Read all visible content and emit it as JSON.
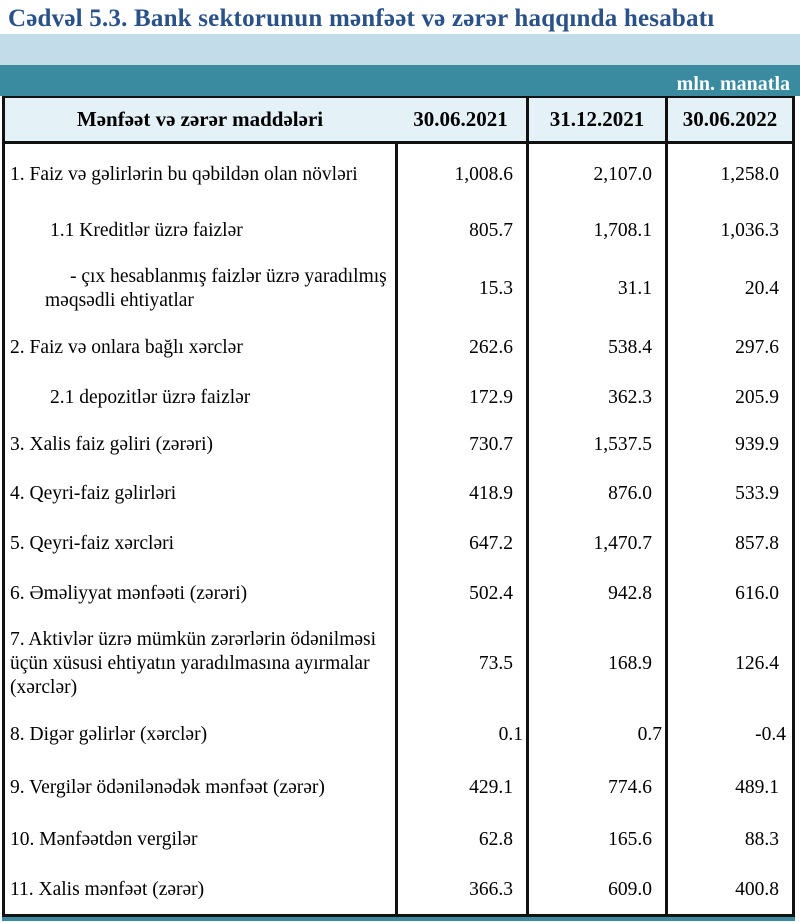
{
  "title": "Cədvəl 5.3. Bank sektorunun mənfəət və zərər haqqında hesabatı",
  "unit_label": "mln. manatla",
  "colors": {
    "accent_teal": "#3a8aa0",
    "band_light_blue": "#c2dde9",
    "header_bg": "#e4f1f7",
    "title_blue": "#2a5288"
  },
  "table": {
    "header": {
      "items_label": "Mənfəət və zərər maddələri",
      "columns": [
        "30.06.2021",
        "31.12.2021",
        "30.06.2022"
      ]
    },
    "rows": [
      {
        "label": "1. Faiz və gəlirlərin bu qəbildən olan növləri",
        "values": [
          "1,008.6",
          "2,107.0",
          "1,258.0"
        ]
      },
      {
        "label": "1.1 Kreditlər üzrə faizlər",
        "values": [
          "805.7",
          "1,708.1",
          "1,036.3"
        ]
      },
      {
        "label": "-  çıx hesablanmış faizlər üzrə yaradılmış məqsədli ehtiyatlar",
        "values": [
          "15.3",
          "31.1",
          "20.4"
        ]
      },
      {
        "label": "2. Faiz və onlara bağlı xərclər",
        "values": [
          "262.6",
          "538.4",
          "297.6"
        ]
      },
      {
        "label": "2.1 depozitlər üzrə faizlər",
        "values": [
          "172.9",
          "362.3",
          "205.9"
        ]
      },
      {
        "label": "3. Xalis faiz gəliri (zərəri)",
        "values": [
          "730.7",
          "1,537.5",
          "939.9"
        ]
      },
      {
        "label": "4. Qeyri-faiz gəlirləri",
        "values": [
          "418.9",
          "876.0",
          "533.9"
        ]
      },
      {
        "label": "5. Qeyri-faiz xərcləri",
        "values": [
          "647.2",
          "1,470.7",
          "857.8"
        ]
      },
      {
        "label": "6. Əməliyyat mənfəəti (zərəri)",
        "values": [
          "502.4",
          "942.8",
          "616.0"
        ]
      },
      {
        "label": "7. Aktivlər üzrə mümkün zərərlərin ödənilməsi üçün xüsusi ehtiyatın yaradılmasına ayırmalar (xərclər)",
        "values": [
          "73.5",
          "168.9",
          "126.4"
        ]
      },
      {
        "label": "8. Digər gəlirlər (xərclər)",
        "values": [
          "0.1",
          "0.7",
          "-0.4"
        ]
      },
      {
        "label": "9. Vergilər ödənilənədək mənfəət (zərər)",
        "values": [
          "429.1",
          "774.6",
          "489.1"
        ]
      },
      {
        "label": "10. Mənfəətdən vergilər",
        "values": [
          "62.8",
          "165.6",
          "88.3"
        ]
      },
      {
        "label": "11. Xalis mənfəət (zərər)",
        "values": [
          "366.3",
          "609.0",
          "400.8"
        ]
      }
    ]
  }
}
